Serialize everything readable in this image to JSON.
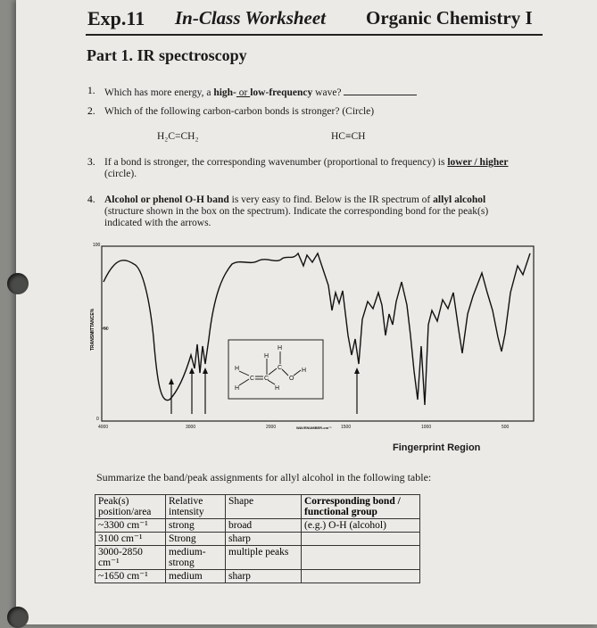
{
  "header": {
    "exp": "Exp.11",
    "title": "In-Class Worksheet",
    "course": "Organic Chemistry I"
  },
  "part_title": "Part 1. IR spectroscopy",
  "questions": {
    "q1": {
      "num": "1.",
      "text_before": "Which has more energy, a ",
      "high": "high-",
      "or": " or ",
      "low": "low-frequency",
      "text_after": " wave?"
    },
    "q2": {
      "num": "2.",
      "text": "Which of the following carbon-carbon bonds is stronger? (Circle)",
      "opt1": "H₂C=CH₂",
      "opt2": "HC≡CH"
    },
    "q3": {
      "num": "3.",
      "line1_before": "If a bond is stronger, the corresponding wavenumber (proportional to frequency) is ",
      "line1_choice": "lower / higher",
      "line2": "(circle)."
    },
    "q4": {
      "num": "4.",
      "bold_lead": "Alcohol or phenol O-H band",
      "line1_rest": " is very easy to find. Below is the IR spectrum of ",
      "allyl": "allyl alcohol",
      "line2": "(structure shown in the box on the spectrum). Indicate the corresponding bond for the peak(s)",
      "line3": "indicated with the arrows."
    }
  },
  "spectrum": {
    "y_top": "100",
    "y_mid": "50",
    "y_bottom": "0",
    "y_label": "TRANSMITTANCE%",
    "x_ticks": [
      "4000",
      "3000",
      "2000",
      "1500",
      "1000",
      "500"
    ],
    "x_label": "WAVENUMBER-cm⁻¹",
    "atoms": [
      "H",
      "H",
      "H",
      "H",
      "H",
      "C",
      "C",
      "C",
      "O"
    ]
  },
  "fingerprint_caption": "Fingerprint Region",
  "summary": "Summarize the band/peak assignments for allyl alcohol in the following table:",
  "table": {
    "headers": [
      "Peak(s) position/area",
      "Relative intensity",
      "Shape",
      "Corresponding bond / functional group"
    ],
    "rows": [
      [
        "~3300 cm⁻¹",
        "strong",
        "broad",
        "(e.g.) O-H (alcohol)"
      ],
      [
        "3100 cm⁻¹",
        "Strong",
        "sharp",
        ""
      ],
      [
        "3000-2850 cm⁻¹",
        "medium-strong",
        "multiple peaks",
        ""
      ],
      [
        "~1650 cm⁻¹",
        "medium",
        "sharp",
        ""
      ]
    ]
  }
}
